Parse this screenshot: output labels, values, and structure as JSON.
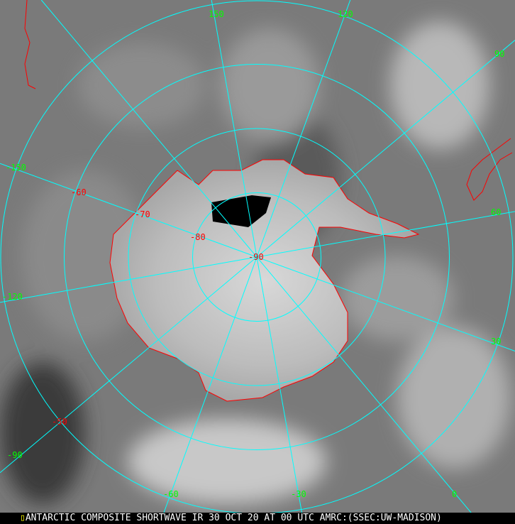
{
  "caption": "ANTARCTIC COMPOSITE SHORTWAVE IR 30 OCT 20 AT 00 UTC AMRC:(SSEC:UW-MADISON)",
  "colors": {
    "graticule": "#00ffff",
    "coastline": "#ff0000",
    "longitude_labels": "#00ff00",
    "latitude_labels": "#ff0000",
    "caption_text": "#ffffff",
    "caption_background": "#000000"
  },
  "longitude_labels": [
    "150",
    "120",
    "90",
    "60",
    "30",
    "0",
    "-30",
    "-60",
    "-90",
    "-120",
    "-150"
  ],
  "latitude_labels": [
    "-50",
    "-60",
    "-70",
    "-80",
    "-90"
  ],
  "meridians_every_deg": 30,
  "parallels": [
    -80,
    -70,
    -60,
    -50
  ]
}
